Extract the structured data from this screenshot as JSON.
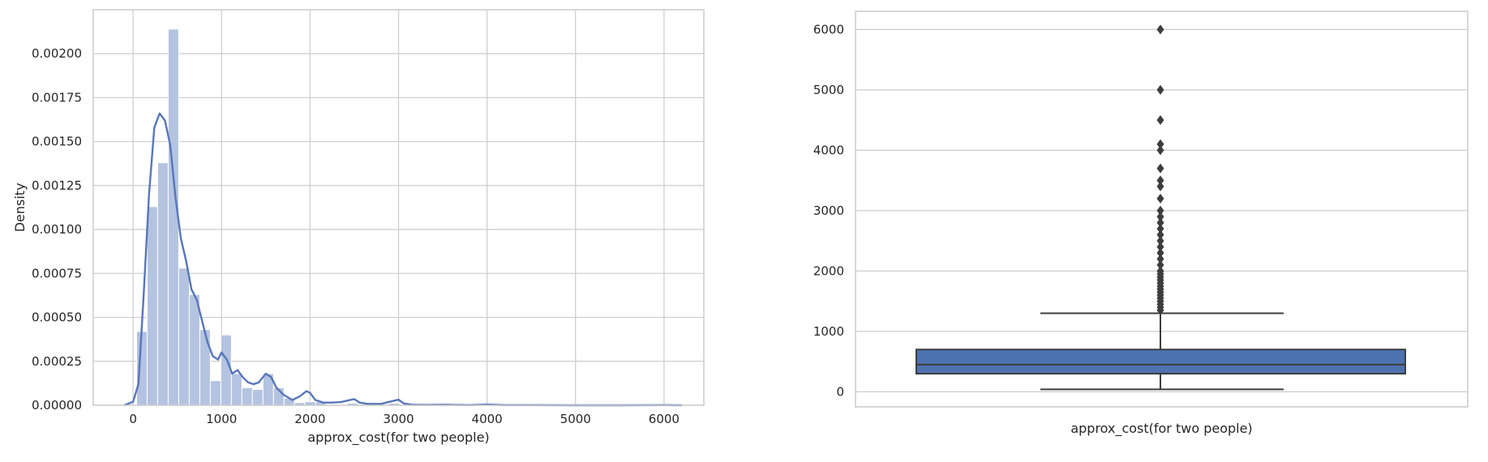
{
  "chart_data": [
    {
      "type": "histogram",
      "xlabel": "approx_cost(for two people)",
      "ylabel": "Density",
      "xlim": [
        -450,
        6450
      ],
      "ylim": [
        0,
        0.00225
      ],
      "xticks": [
        0,
        1000,
        2000,
        3000,
        4000,
        5000,
        6000
      ],
      "xtick_labels": [
        "0",
        "1000",
        "2000",
        "3000",
        "4000",
        "5000",
        "6000"
      ],
      "yticks": [
        0,
        0.00025,
        0.0005,
        0.00075,
        0.001,
        0.00125,
        0.0015,
        0.00175,
        0.002
      ],
      "ytick_labels": [
        "0.00000",
        "0.00025",
        "0.00050",
        "0.00075",
        "0.00100",
        "0.00125",
        "0.00150",
        "0.00175",
        "0.00200"
      ],
      "grid": true,
      "colors": {
        "bars": "#b4c3e0",
        "kde": "#5876b9"
      },
      "bins": {
        "edges": [
          40,
          159,
          278,
          397,
          516,
          635,
          754,
          873,
          992,
          1111,
          1230,
          1349,
          1468,
          1587,
          1706,
          1825,
          1944,
          2063,
          2182,
          2301,
          2420,
          2539,
          2658,
          2777,
          2896,
          3015,
          3134,
          3253,
          3372,
          3491,
          3610,
          3729,
          3848,
          3967,
          4086,
          4205,
          4324,
          4443,
          4562,
          4681,
          4800,
          4919,
          5038,
          5157,
          5276,
          5395,
          5514,
          5633,
          5752,
          5871,
          5990
        ],
        "densities": [
          0.00042,
          0.00113,
          0.00138,
          0.00214,
          0.00078,
          0.00063,
          0.00043,
          0.00014,
          0.0004,
          0.00018,
          0.0001,
          9e-05,
          0.00018,
          0.0001,
          4e-05,
          1.5e-05,
          2e-05,
          2e-05,
          5e-06,
          4e-06,
          1.2e-05,
          5e-06,
          4e-06,
          5e-06,
          1.2e-05,
          3e-06,
          2e-06,
          2e-06,
          1e-06,
          1e-06,
          1e-06,
          1e-06,
          1e-06,
          3e-06,
          1e-06,
          5e-07,
          5e-07,
          5e-07,
          5e-07,
          5e-07,
          5e-07,
          5e-07,
          5e-07,
          5e-07,
          5e-07,
          5e-07,
          5e-07,
          5e-07,
          5e-07,
          5e-07
        ]
      },
      "kde": {
        "x": [
          -100,
          0,
          60,
          120,
          180,
          240,
          300,
          360,
          420,
          480,
          540,
          600,
          660,
          720,
          780,
          840,
          900,
          960,
          1000,
          1060,
          1120,
          1180,
          1240,
          1300,
          1360,
          1420,
          1500,
          1560,
          1620,
          1700,
          1800,
          1880,
          1960,
          2000,
          2060,
          2150,
          2250,
          2350,
          2450,
          2500,
          2560,
          2650,
          2800,
          2900,
          3000,
          3060,
          3150,
          3300,
          3500,
          3800,
          4000,
          4200,
          4500,
          5000,
          5500,
          6000,
          6200
        ],
        "y": [
          0,
          2e-05,
          0.00012,
          0.00063,
          0.0012,
          0.00158,
          0.00166,
          0.00162,
          0.00148,
          0.00118,
          0.00095,
          0.00082,
          0.00066,
          0.0006,
          0.00048,
          0.00036,
          0.00028,
          0.00026,
          0.0003,
          0.00026,
          0.00018,
          0.0002,
          0.00016,
          0.00013,
          0.00012,
          0.00013,
          0.00018,
          0.00016,
          0.0001,
          6e-05,
          3e-05,
          5e-05,
          8e-05,
          7e-05,
          3e-05,
          1.5e-05,
          1.5e-05,
          1.8e-05,
          3e-05,
          3.5e-05,
          1.5e-05,
          8e-06,
          8e-06,
          2e-05,
          3.2e-05,
          1e-05,
          3e-06,
          2e-06,
          3e-06,
          1e-06,
          4e-06,
          1e-06,
          1e-06,
          0,
          0,
          1e-06,
          0
        ]
      }
    },
    {
      "type": "boxplot",
      "xlabel": "approx_cost(for two people)",
      "ylim": [
        -250,
        6300
      ],
      "yticks": [
        0,
        1000,
        2000,
        3000,
        4000,
        5000,
        6000
      ],
      "ytick_labels": [
        "0",
        "1000",
        "2000",
        "3000",
        "4000",
        "5000",
        "6000"
      ],
      "grid": true,
      "colors": {
        "box": "#4c72b0",
        "lines": "#3d3d3d",
        "outliers": "#3d3d3d"
      },
      "stats": {
        "whisker_low": 40,
        "q1": 300,
        "median": 450,
        "q3": 700,
        "whisker_high": 1300
      },
      "outliers": [
        1350,
        1400,
        1450,
        1500,
        1550,
        1600,
        1650,
        1700,
        1750,
        1800,
        1850,
        1900,
        1950,
        2000,
        2100,
        2200,
        2300,
        2400,
        2500,
        2600,
        2700,
        2800,
        2900,
        3000,
        3200,
        3400,
        3500,
        3700,
        4000,
        4100,
        4500,
        5000,
        6000
      ]
    }
  ]
}
